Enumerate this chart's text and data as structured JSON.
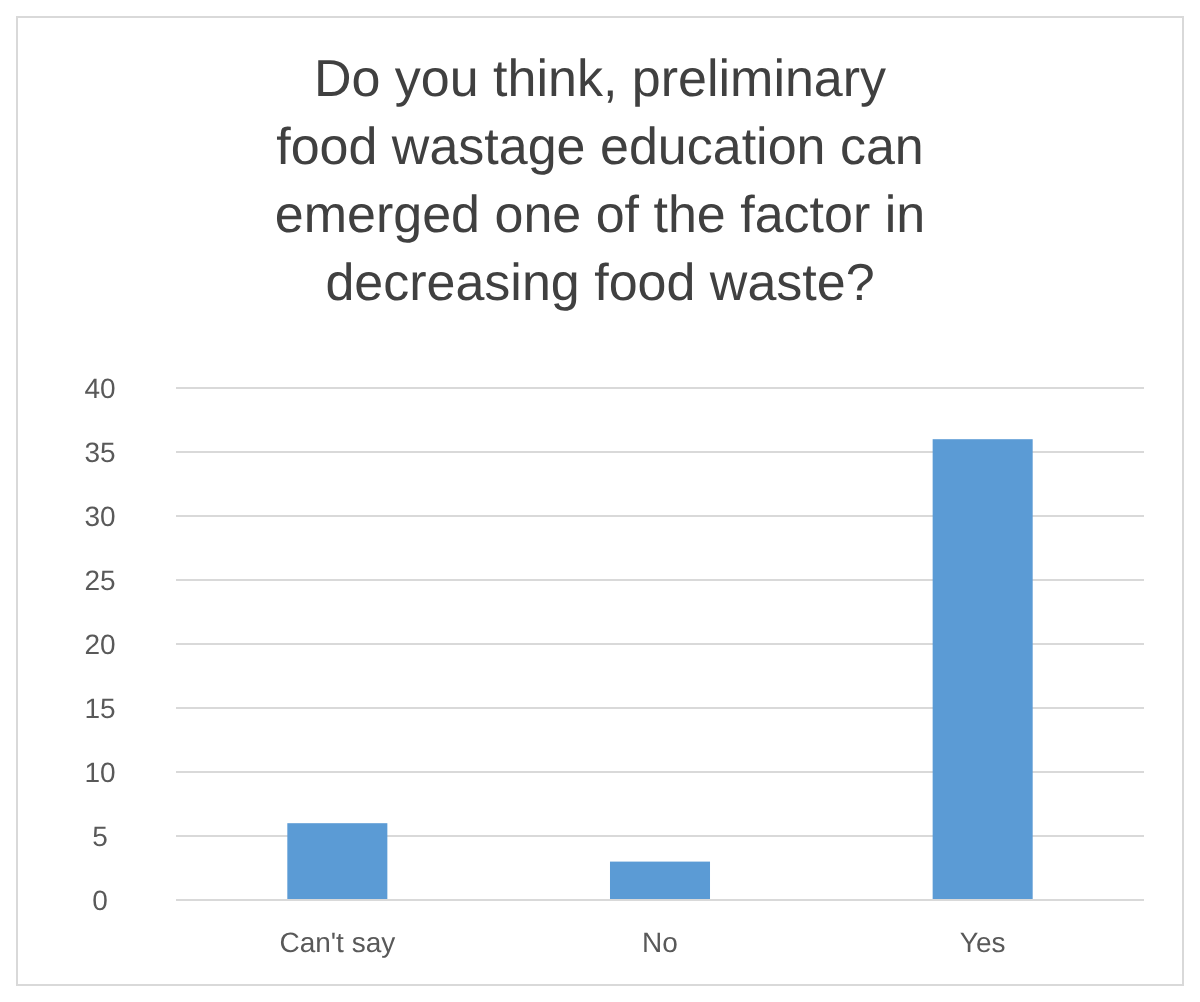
{
  "chart_data": {
    "type": "bar",
    "title": "Do you think, preliminary food wastage education can emerged one of the factor in decreasing food waste?",
    "categories": [
      "Can't say",
      "No",
      "Yes"
    ],
    "values": [
      6,
      3,
      36
    ],
    "color": "#5b9bd5",
    "ylim": [
      0,
      40
    ],
    "yticks": [
      0,
      5,
      10,
      15,
      20,
      25,
      30,
      35,
      40
    ],
    "grid": "y"
  }
}
